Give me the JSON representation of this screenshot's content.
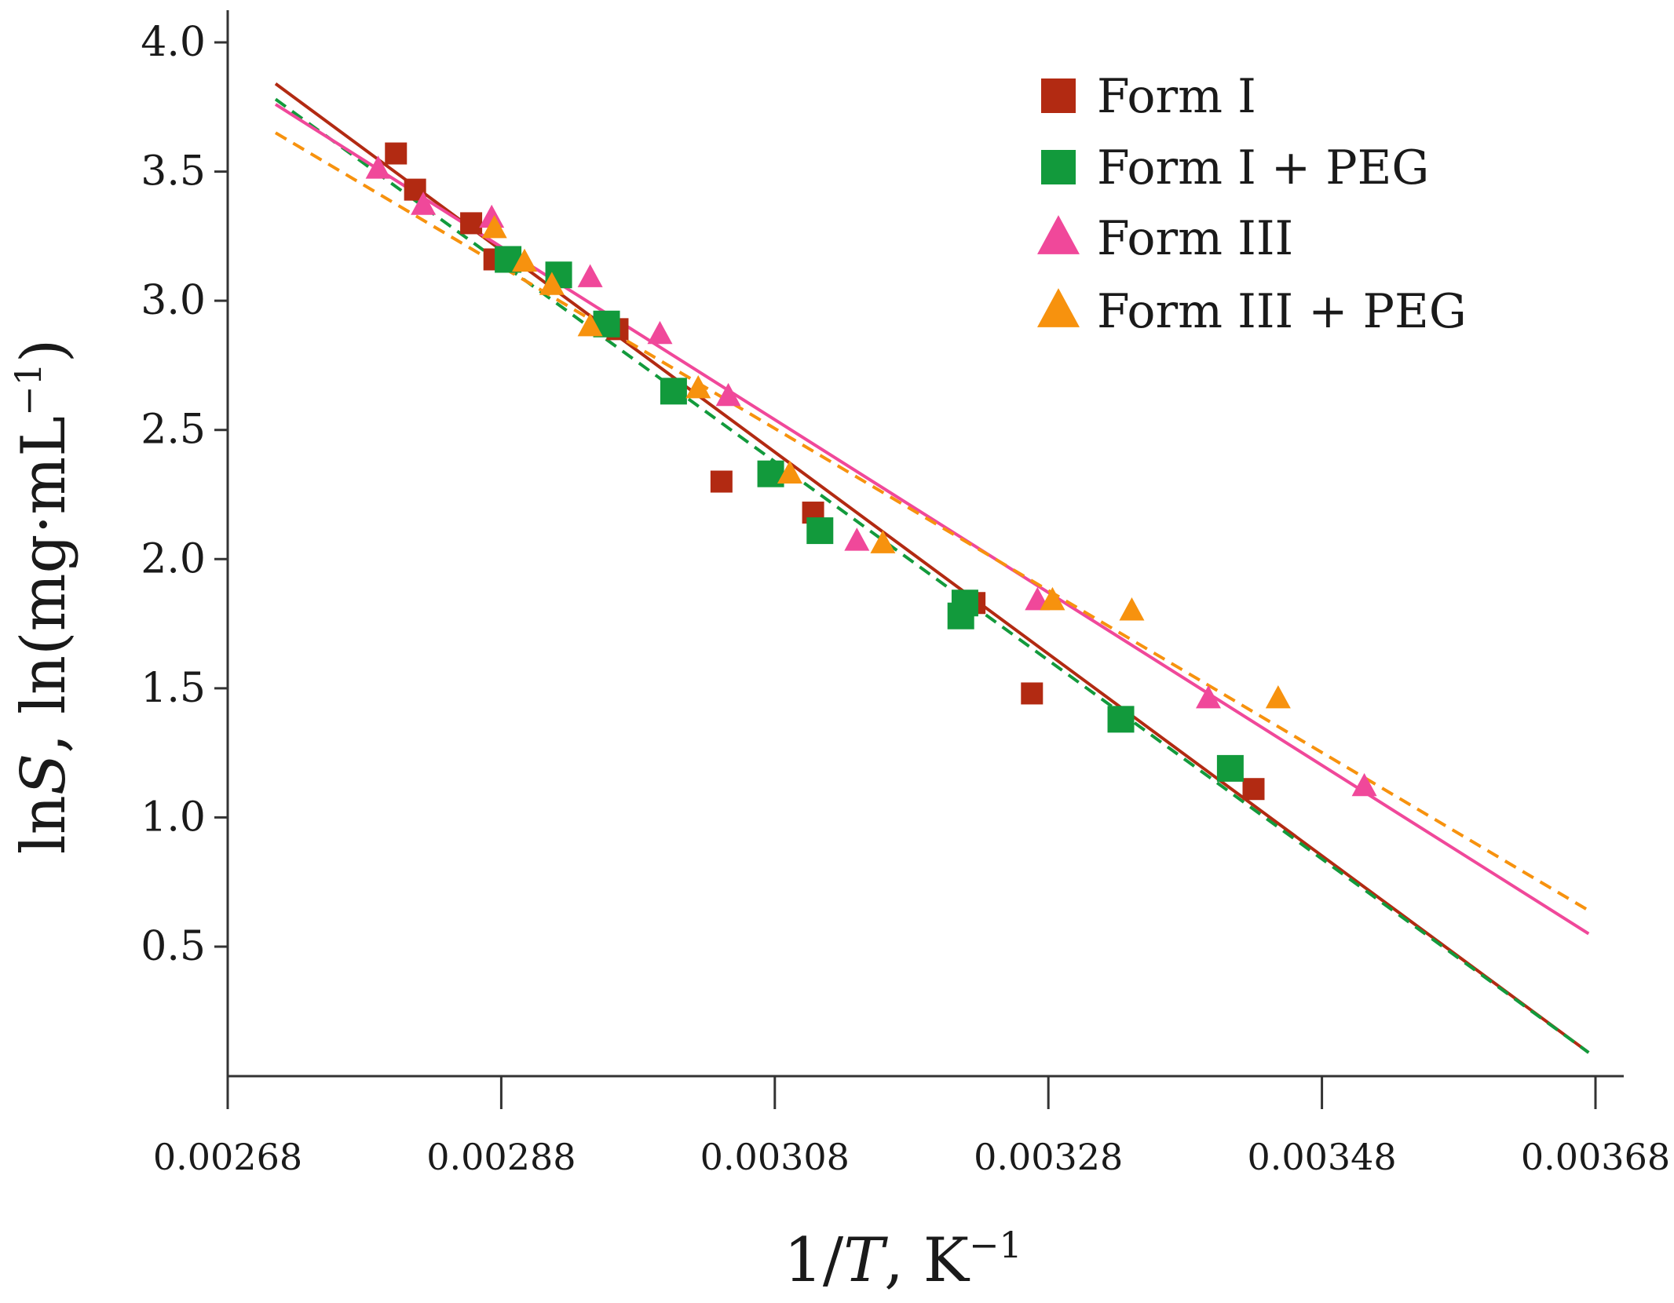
{
  "chart_data": {
    "type": "scatter",
    "title": "",
    "xlabel": {
      "lead": "1/",
      "var": "T",
      "rest": ", K",
      "sup": "−1"
    },
    "ylabel": {
      "lead": "ln",
      "var": "S",
      "rest": ", ln(mg·mL",
      "sup": "−1",
      "close": ")"
    },
    "xlim": [
      0.00268,
      0.00368
    ],
    "ylim": [
      -0.05,
      4.1
    ],
    "xticks": [
      0.00268,
      0.00288,
      0.00308,
      0.00328,
      0.00348,
      0.00368
    ],
    "xtick_labels": [
      "0.00268",
      "0.00288",
      "0.00308",
      "0.00328",
      "0.00348",
      "0.00368"
    ],
    "yticks": [
      0.5,
      1.0,
      1.5,
      2.0,
      2.5,
      3.0,
      3.5,
      4.0
    ],
    "ytick_labels": [
      "0.5",
      "1.0",
      "1.5",
      "2.0",
      "2.5",
      "3.0",
      "3.5",
      "4.0"
    ],
    "grid": false,
    "legend_position": "top-right",
    "series": [
      {
        "name": "Form I",
        "marker": "square",
        "color": "#b22a12",
        "points": [
          [
            0.002803,
            3.57
          ],
          [
            0.002817,
            3.43
          ],
          [
            0.002858,
            3.3
          ],
          [
            0.002875,
            3.16
          ],
          [
            0.002965,
            2.89
          ],
          [
            0.003041,
            2.3
          ],
          [
            0.003108,
            2.18
          ],
          [
            0.003226,
            1.83
          ],
          [
            0.003268,
            1.48
          ],
          [
            0.00343,
            1.11
          ]
        ],
        "fit": {
          "x": [
            0.002715,
            0.003675
          ],
          "y": [
            3.84,
            0.09
          ],
          "style": "solid"
        }
      },
      {
        "name": "Form I + PEG",
        "marker": "square",
        "color": "#129a3c",
        "points": [
          [
            0.002885,
            3.16
          ],
          [
            0.002922,
            3.1
          ],
          [
            0.002957,
            2.91
          ],
          [
            0.003006,
            2.65
          ],
          [
            0.003077,
            2.33
          ],
          [
            0.003113,
            2.11
          ],
          [
            0.003219,
            1.83
          ],
          [
            0.003216,
            1.78
          ],
          [
            0.003333,
            1.38
          ],
          [
            0.003413,
            1.19
          ]
        ],
        "fit": {
          "x": [
            0.002715,
            0.003675
          ],
          "y": [
            3.78,
            0.09
          ],
          "style": "dashed"
        }
      },
      {
        "name": "Form III",
        "marker": "triangle",
        "color": "#f0489a",
        "points": [
          [
            0.00279,
            3.51
          ],
          [
            0.002823,
            3.37
          ],
          [
            0.002873,
            3.32
          ],
          [
            0.002945,
            3.09
          ],
          [
            0.002996,
            2.87
          ],
          [
            0.003046,
            2.63
          ],
          [
            0.00314,
            2.07
          ],
          [
            0.003272,
            1.84
          ],
          [
            0.003397,
            1.46
          ],
          [
            0.003511,
            1.12
          ]
        ],
        "fit": {
          "x": [
            0.002715,
            0.003675
          ],
          "y": [
            3.76,
            0.55
          ],
          "style": "solid"
        }
      },
      {
        "name": "Form III + PEG",
        "marker": "triangle",
        "color": "#f7920e",
        "points": [
          [
            0.002875,
            3.28
          ],
          [
            0.002897,
            3.15
          ],
          [
            0.002917,
            3.06
          ],
          [
            0.002945,
            2.9
          ],
          [
            0.003024,
            2.66
          ],
          [
            0.003091,
            2.33
          ],
          [
            0.003159,
            2.06
          ],
          [
            0.003283,
            1.84
          ],
          [
            0.003341,
            1.8
          ],
          [
            0.003448,
            1.46
          ]
        ],
        "fit": {
          "x": [
            0.002715,
            0.003675
          ],
          "y": [
            3.65,
            0.64
          ],
          "style": "dashed"
        }
      }
    ]
  }
}
